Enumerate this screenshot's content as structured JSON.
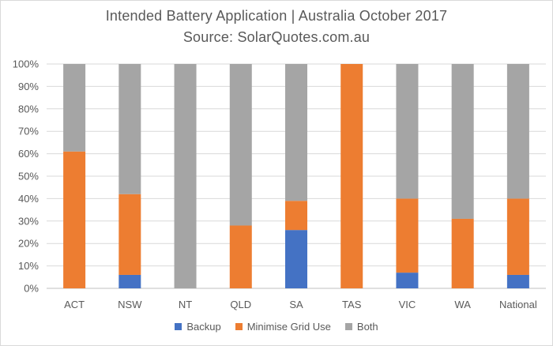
{
  "title": "Intended Battery Application | Australia October 2017",
  "subtitle": "Source: SolarQuotes.com.au",
  "colors": {
    "Backup": "#4472c4",
    "Minimise Grid Use": "#ed7d31",
    "Both": "#a5a5a5",
    "axis_text": "#595959",
    "gridline": "#d9d9d9"
  },
  "chart_data": {
    "type": "bar",
    "stacked": true,
    "percent_stacked": true,
    "title": "Intended Battery Application | Australia October 2017",
    "subtitle": "Source: SolarQuotes.com.au",
    "categories": [
      "ACT",
      "NSW",
      "NT",
      "QLD",
      "SA",
      "TAS",
      "VIC",
      "WA",
      "National"
    ],
    "series": [
      {
        "name": "Backup",
        "values": [
          0,
          6,
          0,
          0,
          26,
          0,
          7,
          0,
          6
        ]
      },
      {
        "name": "Minimise Grid Use",
        "values": [
          61,
          36,
          0,
          28,
          13,
          100,
          33,
          31,
          34
        ]
      },
      {
        "name": "Both",
        "values": [
          39,
          58,
          100,
          72,
          61,
          0,
          60,
          69,
          60
        ]
      }
    ],
    "y_ticks": [
      "0%",
      "10%",
      "20%",
      "30%",
      "40%",
      "50%",
      "60%",
      "70%",
      "80%",
      "90%",
      "100%"
    ],
    "ylim": [
      0,
      100
    ],
    "xlabel": "",
    "ylabel": "",
    "grid": true,
    "legend_position": "bottom"
  }
}
